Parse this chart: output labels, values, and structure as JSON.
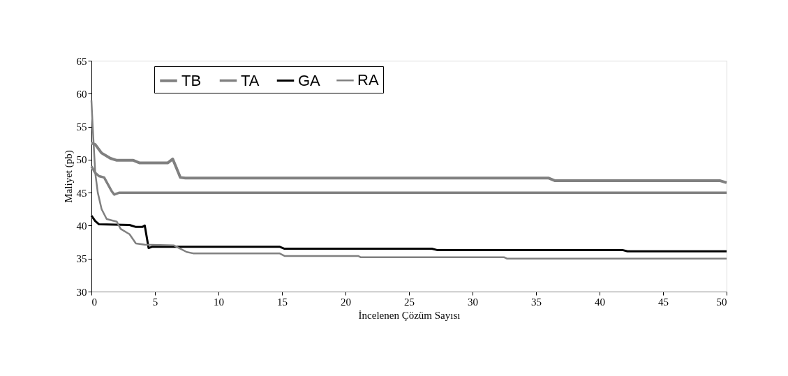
{
  "chart_data": {
    "type": "line",
    "xlabel": "İncelenen Çözüm Sayısı",
    "ylabel": "Maliyet (pb)",
    "xlim": [
      0,
      50
    ],
    "xticks": [
      0,
      5,
      10,
      15,
      20,
      25,
      30,
      35,
      40,
      45,
      50
    ],
    "ylim": [
      30,
      65
    ],
    "yticks": [
      30,
      35,
      40,
      45,
      50,
      55,
      60,
      65
    ],
    "grid": false,
    "legend": "top",
    "marker": "none",
    "line_style": "solid",
    "series": [
      {
        "name": "TB",
        "color": "#808080",
        "x": [
          0,
          0.3,
          0.8,
          1.5,
          2,
          3.3,
          3.8,
          6,
          6.4,
          7,
          7.4,
          36,
          36.5,
          49.5,
          50
        ],
        "values": [
          52.5,
          52.3,
          51,
          50.2,
          49.9,
          49.9,
          49.5,
          49.5,
          50.1,
          47.3,
          47.2,
          47.2,
          46.8,
          46.8,
          46.5
        ]
      },
      {
        "name": "TA",
        "color": "#808080",
        "x": [
          0,
          0.3,
          0.6,
          1,
          1.6,
          1.8,
          2.2,
          50
        ],
        "values": [
          49,
          48,
          47.5,
          47.3,
          45.2,
          44.7,
          45,
          45
        ]
      },
      {
        "name": "GA",
        "color": "#000000",
        "x": [
          0,
          0.3,
          0.6,
          3,
          3.5,
          4,
          4.2,
          4.5,
          4.8,
          14.8,
          15.2,
          26.8,
          27.2,
          41.8,
          42.2,
          50
        ],
        "values": [
          41.5,
          40.7,
          40.2,
          40.1,
          39.8,
          39.8,
          40,
          36.6,
          36.8,
          36.8,
          36.5,
          36.5,
          36.3,
          36.3,
          36.1,
          36.1
        ]
      },
      {
        "name": "RA",
        "color": "#808080",
        "x": [
          0,
          0.1,
          0.3,
          0.5,
          0.8,
          1.2,
          2,
          2.3,
          3,
          3.5,
          4.2,
          6.5,
          7.5,
          8,
          14.8,
          15.2,
          21,
          21.2,
          32.5,
          32.7,
          50
        ],
        "values": [
          59,
          55,
          48,
          45,
          42.5,
          41,
          40.6,
          39.5,
          38.7,
          37.3,
          37.1,
          37,
          36,
          35.8,
          35.8,
          35.4,
          35.4,
          35.2,
          35.2,
          35,
          35
        ]
      }
    ]
  }
}
